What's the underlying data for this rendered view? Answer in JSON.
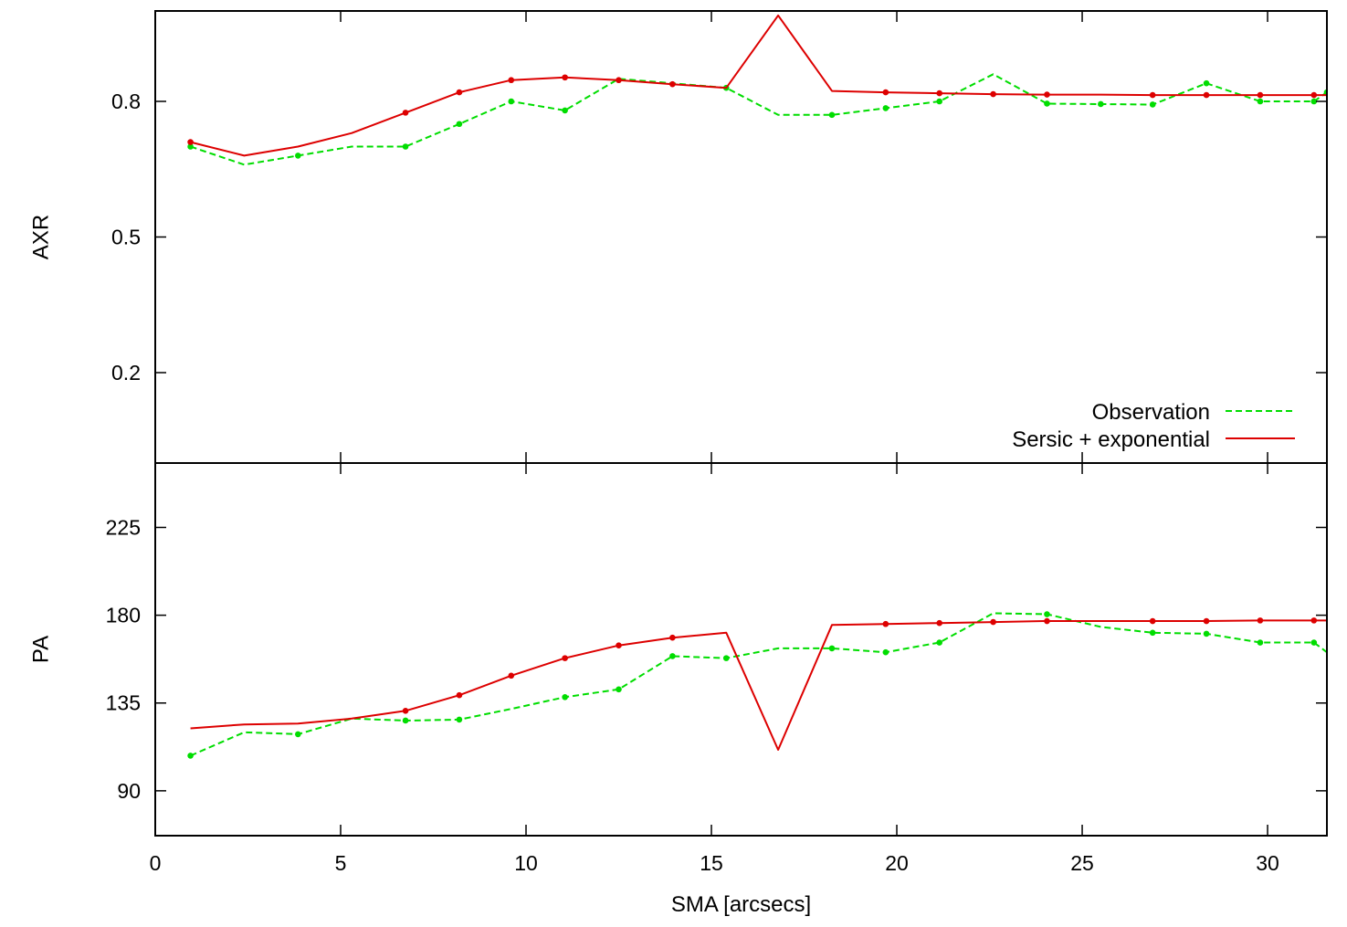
{
  "colors": {
    "observation": "#00dd00",
    "model": "#dd0000",
    "axes": "#000000",
    "background": "#ffffff"
  },
  "chart_data": [
    {
      "type": "line",
      "panel": "top",
      "xlabel": "SMA [arcsecs]",
      "ylabel": "AXR",
      "xlim": [
        0,
        31.6
      ],
      "ylim": [
        0,
        1.0
      ],
      "xticks": [
        0,
        5,
        10,
        15,
        20,
        25,
        30
      ],
      "yticks": [
        0.2,
        0.5,
        0.8
      ],
      "ytick_labels": [
        "0.2",
        "0.5",
        "0.8"
      ],
      "grid": false,
      "legend_position": "bottom-right",
      "series": [
        {
          "name": "Observation",
          "style": "dashed",
          "color": "#00dd00",
          "x": [
            0.95,
            2.4,
            3.85,
            5.3,
            6.75,
            8.2,
            9.6,
            11.05,
            12.5,
            13.95,
            15.4,
            16.8,
            18.25,
            19.7,
            21.15,
            22.6,
            24.05,
            25.5,
            26.9,
            28.35,
            29.8,
            31.25,
            31.6
          ],
          "y": [
            0.7,
            0.66,
            0.68,
            0.7,
            0.7,
            0.75,
            0.8,
            0.78,
            0.85,
            0.84,
            0.83,
            0.77,
            0.77,
            0.785,
            0.8,
            0.86,
            0.795,
            0.794,
            0.793,
            0.84,
            0.8,
            0.8,
            0.82
          ],
          "markers_at": [
            0,
            2,
            4,
            5,
            6,
            7,
            10,
            12,
            13,
            14,
            16,
            17,
            18,
            19,
            20,
            21,
            22,
            23,
            24
          ]
        },
        {
          "name": "Sersic + exponential",
          "style": "solid",
          "color": "#dd0000",
          "x": [
            0.95,
            2.4,
            3.85,
            5.3,
            6.75,
            8.2,
            9.6,
            11.05,
            12.5,
            13.95,
            15.4,
            16.8,
            18.25,
            19.7,
            21.15,
            22.6,
            24.05,
            25.5,
            26.9,
            28.35,
            29.8,
            31.25,
            31.6
          ],
          "y": [
            0.71,
            0.68,
            0.7,
            0.73,
            0.775,
            0.82,
            0.847,
            0.853,
            0.847,
            0.838,
            0.83,
            0.99,
            0.823,
            0.82,
            0.818,
            0.816,
            0.815,
            0.815,
            0.814,
            0.814,
            0.814,
            0.814,
            0.814
          ],
          "markers_at": [
            0,
            4,
            5,
            6,
            7,
            8,
            9,
            13,
            14,
            15,
            16,
            18,
            19,
            20,
            21
          ]
        }
      ]
    },
    {
      "type": "line",
      "panel": "bottom",
      "xlabel": "SMA [arcsecs]",
      "ylabel": "PA",
      "xlim": [
        0,
        31.6
      ],
      "ylim": [
        67,
        258
      ],
      "xticks": [
        0,
        5,
        10,
        15,
        20,
        25,
        30
      ],
      "xtick_labels": [
        "0",
        "5",
        "10",
        "15",
        "20",
        "25",
        "30"
      ],
      "yticks": [
        90,
        135,
        180,
        225
      ],
      "ytick_labels": [
        "90",
        "135",
        "180",
        "225"
      ],
      "grid": false,
      "series": [
        {
          "name": "Observation",
          "style": "dashed",
          "color": "#00dd00",
          "x": [
            0.95,
            2.4,
            3.85,
            5.3,
            6.75,
            8.2,
            9.6,
            11.05,
            12.5,
            13.95,
            15.4,
            16.8,
            18.25,
            19.7,
            21.15,
            22.6,
            24.05,
            25.5,
            26.9,
            28.35,
            29.8,
            31.25,
            31.6
          ],
          "y": [
            108,
            120,
            119,
            127,
            126,
            126.5,
            132,
            138,
            142,
            159,
            158,
            163,
            163,
            161,
            166,
            181,
            180.5,
            174,
            171,
            170.5,
            166,
            166,
            161
          ],
          "markers_at": [
            0,
            2,
            4,
            5,
            7,
            8,
            9,
            10,
            12,
            13,
            14,
            16,
            18,
            19,
            20,
            21
          ]
        },
        {
          "name": "Sersic + exponential",
          "style": "solid",
          "color": "#dd0000",
          "x": [
            0.95,
            2.4,
            3.85,
            5.3,
            6.75,
            8.2,
            9.6,
            11.05,
            12.5,
            13.95,
            15.4,
            16.8,
            18.25,
            19.7,
            21.15,
            22.6,
            24.05,
            25.5,
            26.9,
            28.35,
            29.8,
            31.25,
            31.6
          ],
          "y": [
            122,
            124,
            124.5,
            127,
            131,
            139,
            149,
            158,
            164.5,
            168.5,
            171,
            111,
            175,
            175.5,
            176,
            176.5,
            177,
            177,
            177,
            177,
            177.3,
            177.3,
            177.3
          ],
          "markers_at": [
            4,
            5,
            6,
            7,
            8,
            9,
            13,
            14,
            15,
            16,
            18,
            19,
            20,
            21
          ]
        }
      ]
    }
  ]
}
